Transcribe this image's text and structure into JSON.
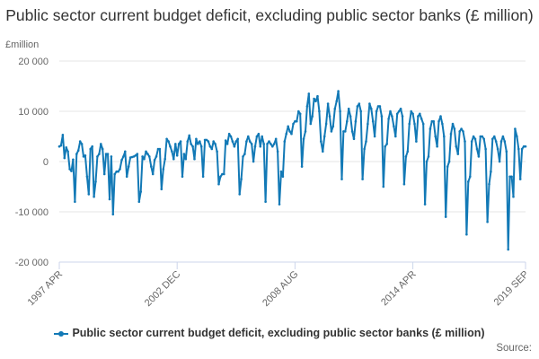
{
  "chart_data": {
    "type": "line",
    "title": "Public sector current budget deficit, excluding public sector banks (£ million)",
    "ylabel": "£million",
    "xlabel": "",
    "ylim": [
      -20000,
      20000
    ],
    "yticks": [
      20000,
      10000,
      0,
      -10000,
      -20000
    ],
    "ytick_labels": [
      "20 000",
      "10 000",
      "0",
      "-10 000",
      "-20 000"
    ],
    "xticks": [
      {
        "index": 0,
        "label": "1997 APR"
      },
      {
        "index": 68,
        "label": "2002 DEC"
      },
      {
        "index": 136,
        "label": "2008 AUG"
      },
      {
        "index": 204,
        "label": "2014 APR"
      },
      {
        "index": 269,
        "label": "2019 SEP"
      }
    ],
    "grid": true,
    "legend_position": "bottom",
    "series": [
      {
        "name": "Public sector current budget deficit, excluding public sector banks (£ million)",
        "color": "#1279b6",
        "x_start": "1997 APR",
        "x_end": "2019 SEP",
        "frequency": "monthly",
        "values": [
          3000,
          3200,
          5300,
          700,
          2800,
          2000,
          -1500,
          -1900,
          400,
          -8000,
          1500,
          2200,
          4000,
          3500,
          1000,
          1200,
          -3000,
          -6500,
          2500,
          3000,
          -7000,
          -4000,
          1000,
          1500,
          3500,
          2500,
          -2500,
          1500,
          1500,
          -7500,
          1000,
          -10500,
          -2500,
          -2000,
          -2000,
          -1500,
          300,
          1000,
          2000,
          -3000,
          -1000,
          800,
          900,
          1000,
          1200,
          1500,
          -8000,
          -6000,
          1000,
          500,
          2000,
          1500,
          1000,
          -1000,
          -2500,
          300,
          1000,
          2500,
          2500,
          -5500,
          -1500,
          500,
          4500,
          4000,
          3000,
          2000,
          500,
          3500,
          1200,
          3500,
          4000,
          -3000,
          1500,
          500,
          4000,
          5200,
          3500,
          3000,
          500,
          4500,
          3500,
          4000,
          3000,
          -3000,
          4300,
          4300,
          4000,
          3000,
          2500,
          4000,
          3500,
          2000,
          -4500,
          -3000,
          -2500,
          -2500,
          4200,
          3500,
          5500,
          5000,
          4000,
          3000,
          4000,
          4500,
          -6500,
          -3500,
          1000,
          1500,
          4000,
          5000,
          4000,
          3500,
          0,
          3000,
          5000,
          5500,
          3000,
          5000,
          3500,
          -8000,
          3500,
          4000,
          3500,
          3000,
          3500,
          4500,
          2000,
          -8500,
          -2000,
          -3000,
          4000,
          5500,
          7000,
          6000,
          5500,
          7500,
          8000,
          8000,
          10000,
          9500,
          -1000,
          4500,
          6000,
          11000,
          13500,
          7500,
          9000,
          12500,
          12000,
          13000,
          10000,
          4000,
          2000,
          5000,
          7500,
          11500,
          9000,
          6000,
          7000,
          10500,
          12000,
          14000,
          10000,
          -3500,
          6000,
          6000,
          8000,
          10500,
          9000,
          6000,
          4500,
          8000,
          11000,
          11500,
          10000,
          -3500,
          2500,
          4000,
          7500,
          11500,
          10500,
          8000,
          5000,
          10000,
          11000,
          11000,
          9000,
          -5000,
          3000,
          3500,
          8500,
          10000,
          9000,
          7000,
          5000,
          9500,
          10000,
          10500,
          9000,
          -4500,
          1000,
          2000,
          7500,
          10000,
          9500,
          7500,
          4000,
          9000,
          9500,
          8500,
          7500,
          -8500,
          0,
          1000,
          6500,
          8000,
          8000,
          5000,
          3000,
          8000,
          9000,
          7500,
          5000,
          -11000,
          -1000,
          0,
          5500,
          7500,
          6500,
          3000,
          1500,
          6000,
          6500,
          6000,
          4000,
          -14500,
          -4000,
          -3000,
          4000,
          5000,
          4500,
          2500,
          1000,
          5000,
          5000,
          4500,
          2500,
          -12000,
          -4500,
          -2000,
          4500,
          5000,
          4000,
          2500,
          0,
          4000,
          5000,
          4000,
          2000,
          -17500,
          -3000,
          -3000,
          -7000,
          6500,
          5000,
          2500,
          -3500,
          2500,
          3000,
          3000
        ]
      }
    ]
  },
  "source_label": "Source:"
}
